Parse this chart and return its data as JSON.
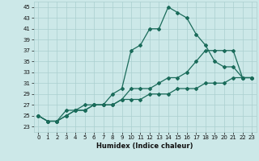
{
  "xlabel": "Humidex (Indice chaleur)",
  "xlim": [
    -0.5,
    23.5
  ],
  "ylim": [
    22.0,
    46.0
  ],
  "yticks": [
    23,
    25,
    27,
    29,
    31,
    33,
    35,
    37,
    39,
    41,
    43,
    45
  ],
  "xticks": [
    0,
    1,
    2,
    3,
    4,
    5,
    6,
    7,
    8,
    9,
    10,
    11,
    12,
    13,
    14,
    15,
    16,
    17,
    18,
    19,
    20,
    21,
    22,
    23
  ],
  "bg_color": "#cce8e8",
  "grid_color": "#aacfcf",
  "line_color": "#1a6b5a",
  "line1_x": [
    0,
    1,
    2,
    3,
    4,
    5,
    6,
    7,
    8,
    9,
    10,
    11,
    12,
    13,
    14,
    15,
    16,
    17,
    18,
    19,
    20,
    21,
    22,
    23
  ],
  "line1_y": [
    25,
    24,
    24,
    25,
    26,
    26,
    27,
    27,
    27,
    28,
    28,
    28,
    29,
    29,
    29,
    30,
    30,
    30,
    31,
    31,
    31,
    32,
    32,
    32
  ],
  "line2_x": [
    0,
    1,
    2,
    3,
    4,
    5,
    6,
    7,
    8,
    9,
    10,
    11,
    12,
    13,
    14,
    15,
    16,
    17,
    18,
    19,
    20,
    21,
    22,
    23
  ],
  "line2_y": [
    25,
    24,
    24,
    25,
    26,
    26,
    27,
    27,
    27,
    28,
    30,
    30,
    30,
    31,
    32,
    32,
    33,
    35,
    37,
    37,
    37,
    37,
    32,
    32
  ],
  "line3_x": [
    0,
    1,
    2,
    3,
    4,
    5,
    6,
    7,
    8,
    9,
    10,
    11,
    12,
    13,
    14,
    15,
    16,
    17,
    18,
    19,
    20,
    21,
    22,
    23
  ],
  "line3_y": [
    25,
    24,
    24,
    26,
    26,
    27,
    27,
    27,
    29,
    30,
    37,
    38,
    41,
    41,
    45,
    44,
    43,
    40,
    38,
    35,
    34,
    34,
    32,
    32
  ]
}
